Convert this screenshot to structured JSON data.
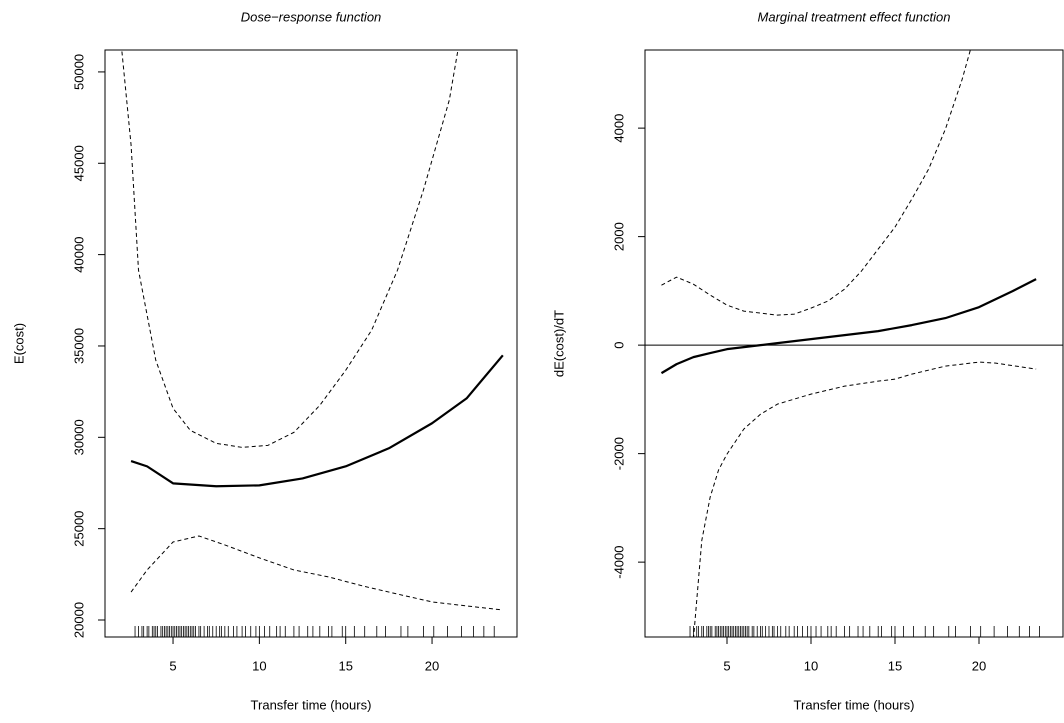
{
  "chart_data": [
    {
      "type": "line",
      "title": "Dose−response function",
      "xlabel": "Transfer time (hours)",
      "ylabel": "E(cost)",
      "xlim": [
        1.06,
        24.92
      ],
      "ylim": [
        19070,
        51200
      ],
      "xticks": [
        5,
        10,
        15,
        20
      ],
      "yticks": [
        20000,
        25000,
        30000,
        35000,
        40000,
        45000,
        50000
      ],
      "series": [
        {
          "style": "solid",
          "color": "#000000",
          "x": [
            2.57,
            3.5,
            5,
            7.5,
            10,
            12.5,
            15,
            17.5,
            20,
            22,
            24.1
          ],
          "values": [
            28700,
            28410,
            27480,
            27320,
            27370,
            27750,
            28410,
            29400,
            30770,
            32130,
            34490
          ]
        },
        {
          "style": "dashed",
          "color": "#000000",
          "x": [
            2.0,
            2.57,
            3.0,
            4.0,
            5.0,
            6.0,
            7.5,
            9.0,
            10.5,
            12.0,
            13.5,
            15.0,
            16.5,
            18.0,
            19.5,
            21.0,
            21.5
          ],
          "values": [
            51500,
            46000,
            39150,
            34220,
            31590,
            30380,
            29670,
            29450,
            29560,
            30270,
            31750,
            33670,
            35860,
            39150,
            43530,
            48460,
            51200
          ]
        },
        {
          "style": "dashed",
          "color": "#000000",
          "x": [
            2.57,
            3.5,
            5,
            6.5,
            8,
            10,
            12,
            14,
            16,
            18,
            20,
            22,
            24.1
          ],
          "values": [
            21530,
            22740,
            24270,
            24600,
            24110,
            23400,
            22740,
            22360,
            21860,
            21420,
            20990,
            20770,
            20550
          ]
        }
      ],
      "rug": [
        2.8,
        3.0,
        3.2,
        3.3,
        3.5,
        3.6,
        3.8,
        3.9,
        4.0,
        4.1,
        4.3,
        4.4,
        4.5,
        4.6,
        4.7,
        4.8,
        4.9,
        5.0,
        5.1,
        5.2,
        5.3,
        5.4,
        5.5,
        5.6,
        5.7,
        5.8,
        5.9,
        6.0,
        6.1,
        6.2,
        6.3,
        6.5,
        6.6,
        6.8,
        7.0,
        7.1,
        7.3,
        7.5,
        7.7,
        7.8,
        8.0,
        8.2,
        8.5,
        8.7,
        9.0,
        9.2,
        9.5,
        9.8,
        10.0,
        10.3,
        10.6,
        11.0,
        11.2,
        11.5,
        12.0,
        12.3,
        12.8,
        13.1,
        13.5,
        14.0,
        14.2,
        14.8,
        15.0,
        15.5,
        16.1,
        16.8,
        17.3,
        18.2,
        18.6,
        19.5,
        20.1,
        20.9,
        21.7,
        22.4,
        23.0,
        23.6
      ]
    },
    {
      "type": "line",
      "title": "Marginal treatment effect function",
      "xlabel": "Transfer time (hours)",
      "ylabel": "dE(cost)/dT",
      "xlim": [
        0.12,
        25.0
      ],
      "ylim": [
        -5380,
        5440
      ],
      "xticks": [
        5,
        10,
        15,
        20
      ],
      "yticks": [
        -4000,
        -2000,
        0,
        2000,
        4000
      ],
      "hline": 0,
      "series": [
        {
          "style": "solid",
          "color": "#000000",
          "x": [
            1.1,
            2,
            3,
            4,
            5,
            6,
            7,
            8,
            10,
            12,
            14,
            16,
            18,
            20,
            22,
            23.4
          ],
          "values": [
            -516,
            -350,
            -221,
            -147,
            -74,
            -37,
            0,
            37,
            111,
            184,
            258,
            369,
            498,
            700,
            995,
            1217
          ]
        },
        {
          "style": "dashed",
          "color": "#000000",
          "x": [
            1.1,
            2,
            3,
            4,
            5,
            6,
            7,
            8,
            9,
            10,
            11,
            12,
            13,
            14,
            15,
            16,
            17,
            18,
            19,
            19.5
          ],
          "values": [
            1106,
            1253,
            1124,
            922,
            737,
            627,
            590,
            553,
            571,
            682,
            811,
            1032,
            1364,
            1770,
            2175,
            2691,
            3244,
            3981,
            4903,
            5456
          ]
        },
        {
          "style": "dashed",
          "color": "#000000",
          "x": [
            2.9,
            3.5,
            4,
            4.5,
            5,
            6,
            7,
            8,
            9,
            10,
            12,
            14,
            15,
            16,
            18,
            20,
            21,
            23.4
          ],
          "values": [
            -5800,
            -3600,
            -2800,
            -2300,
            -2009,
            -1548,
            -1272,
            -1088,
            -995,
            -903,
            -756,
            -664,
            -627,
            -535,
            -387,
            -313,
            -332,
            -442
          ]
        }
      ],
      "rug": [
        2.8,
        3.0,
        3.2,
        3.3,
        3.5,
        3.6,
        3.8,
        3.9,
        4.0,
        4.1,
        4.3,
        4.4,
        4.5,
        4.6,
        4.7,
        4.8,
        4.9,
        5.0,
        5.1,
        5.2,
        5.3,
        5.4,
        5.5,
        5.6,
        5.7,
        5.8,
        5.9,
        6.0,
        6.1,
        6.2,
        6.3,
        6.5,
        6.6,
        6.8,
        7.0,
        7.1,
        7.3,
        7.5,
        7.7,
        7.8,
        8.0,
        8.2,
        8.5,
        8.7,
        9.0,
        9.2,
        9.5,
        9.8,
        10.0,
        10.3,
        10.6,
        11.0,
        11.2,
        11.5,
        12.0,
        12.3,
        12.8,
        13.1,
        13.5,
        14.0,
        14.2,
        14.8,
        15.0,
        15.5,
        16.1,
        16.8,
        17.3,
        18.2,
        18.6,
        19.5,
        20.1,
        20.9,
        21.7,
        22.4,
        23.0,
        23.6
      ]
    }
  ]
}
